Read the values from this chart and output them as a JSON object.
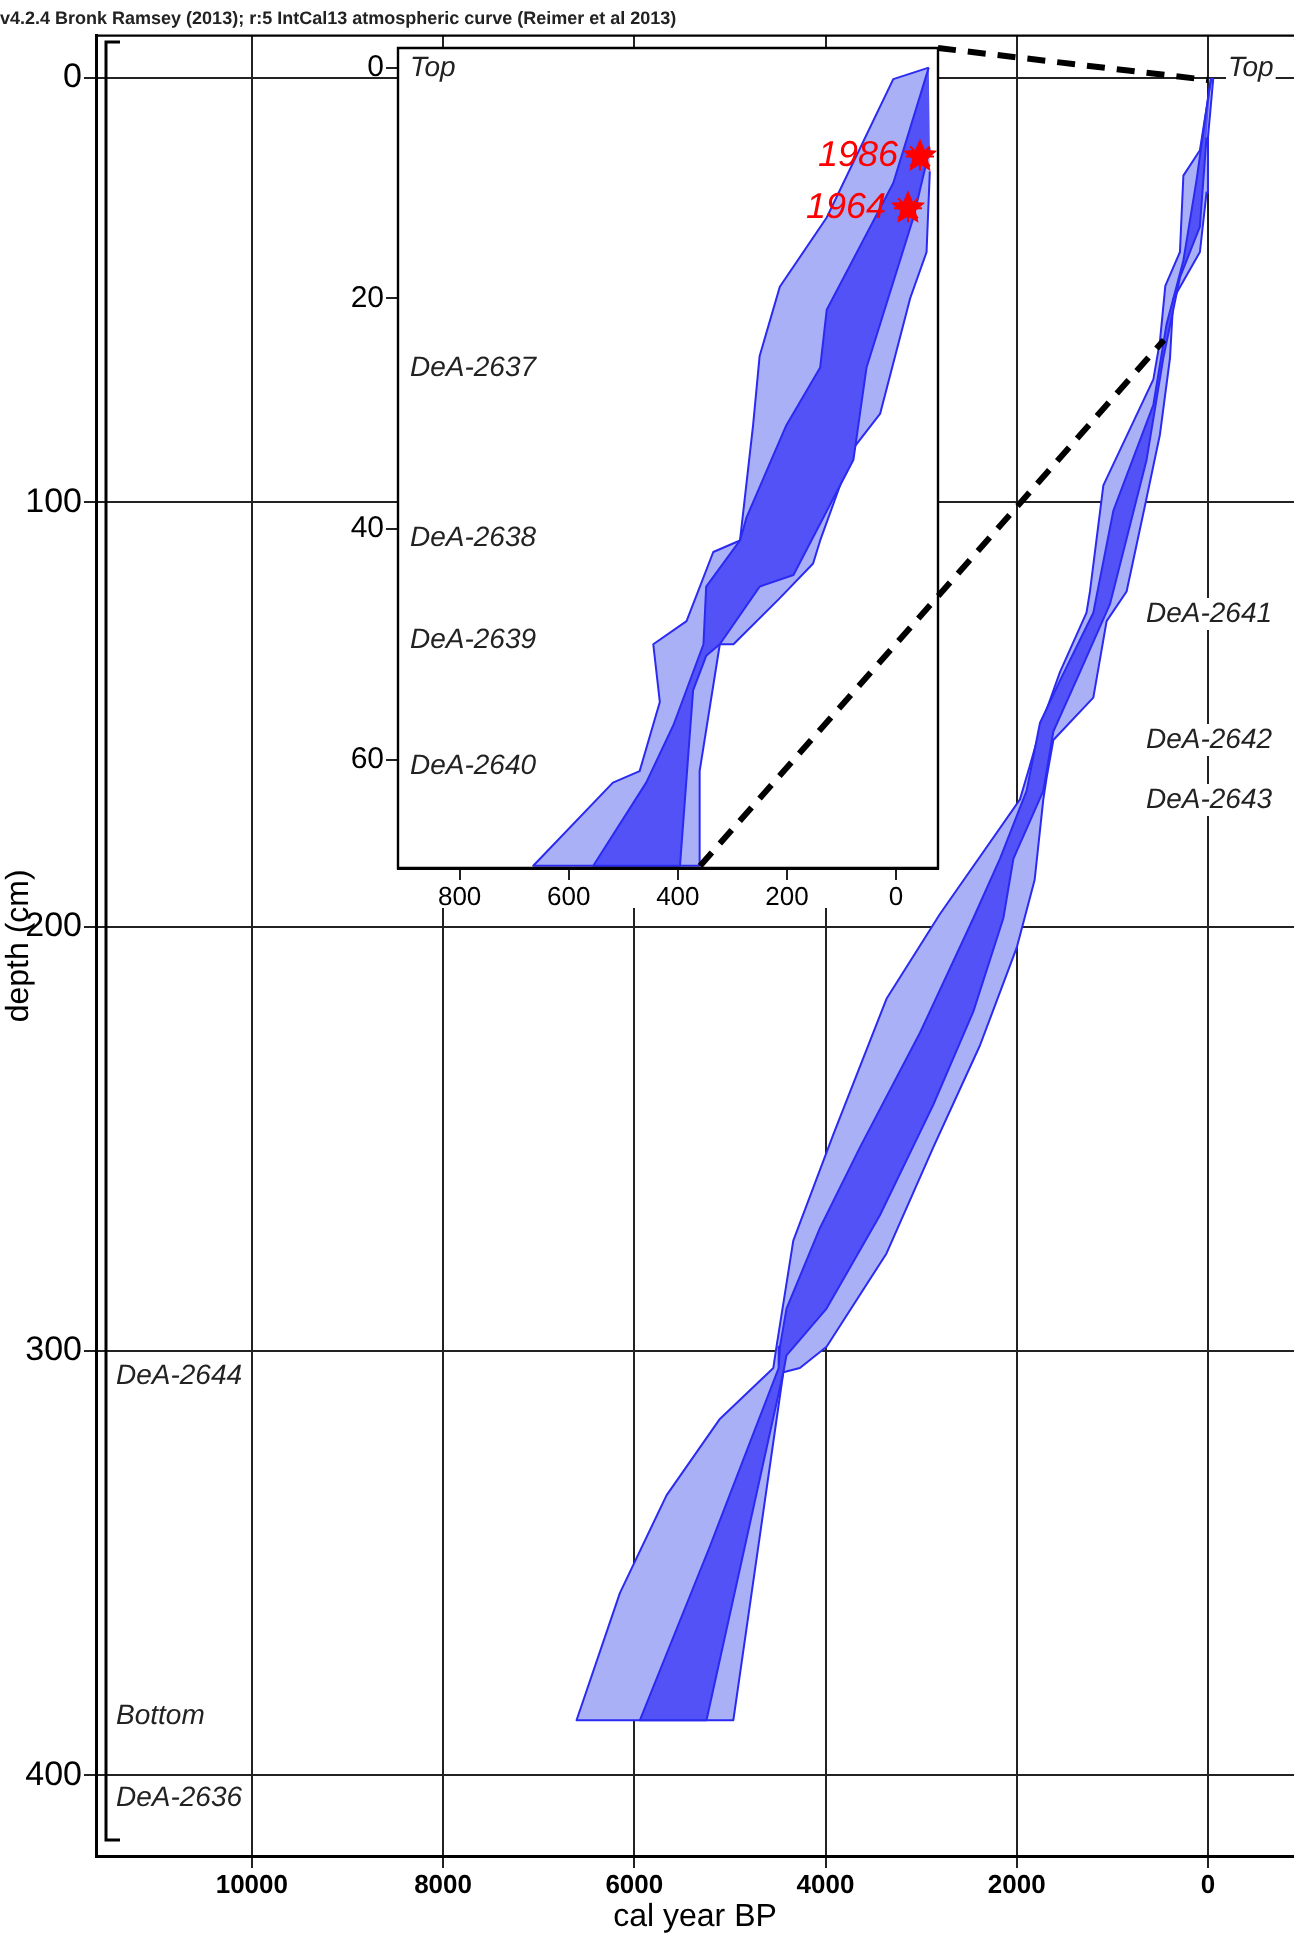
{
  "chart_data": [
    {
      "type": "area",
      "title": "v4.2.4 Bronk Ramsey (2013); r:5 IntCal13 atmospheric curve (Reimer et al 2013)",
      "xlabel": "cal year BP",
      "ylabel": "depth (cm)",
      "xlim": [
        11630,
        -900
      ],
      "ylim": [
        419,
        -10
      ],
      "xticks": [
        10000,
        8000,
        6000,
        4000,
        2000,
        0
      ],
      "yticks": [
        0,
        100,
        200,
        300,
        400
      ],
      "grid": true,
      "series": [
        {
          "color": "#aab0f6",
          "x": [
            -35,
            84,
            257,
            293,
            446,
            502,
            571,
            1094,
            1234,
            1270,
            1548,
            1722,
            1862,
            1966,
            2803,
            3362,
            3919,
            4337,
            4513,
            4546,
            5105,
            5663,
            6150,
            6604,
            4964,
            4441,
            4268,
            3989,
            3362,
            2873,
            2385,
            2001,
            1813,
            1722,
            1688,
            1617,
            1199,
            1060,
            851,
            642,
            502,
            397,
            362,
            84,
            15,
            0,
            -56
          ],
          "values": [
            0,
            17,
            23,
            41,
            49,
            62,
            71,
            96,
            121,
            126,
            140,
            151,
            162,
            170,
            197,
            217,
            249,
            274,
            299,
            304,
            316,
            334,
            357,
            387,
            387,
            305,
            304,
            299,
            277,
            252,
            228,
            205,
            189,
            170,
            165,
            156,
            146,
            128,
            121,
            99,
            84,
            66,
            52,
            41,
            27,
            14,
            0
          ]
        },
        {
          "color": "#5252f7",
          "x": [
            -30,
            119,
            257,
            433,
            571,
            990,
            1199,
            1548,
            1757,
            1897,
            2176,
            2454,
            3012,
            3640,
            4058,
            4408,
            4477,
            4490,
            5209,
            5941,
            5245,
            4441,
            4408,
            3989,
            3431,
            2873,
            2454,
            2140,
            2035,
            1722,
            1617,
            1339,
            1025,
            642,
            467,
            293,
            84,
            15
          ],
          "values": [
            0,
            24,
            43,
            58,
            77,
            102,
            126,
            142,
            152,
            168,
            184,
            198,
            225,
            252,
            271,
            290,
            299,
            304,
            346,
            387,
            387,
            305,
            301,
            290,
            268,
            242,
            220,
            198,
            184,
            168,
            154,
            140,
            124,
            90,
            66,
            47,
            35,
            14
          ]
        }
      ],
      "annotations": [
        "Top",
        "DeA-2641",
        "DeA-2642",
        "DeA-2643",
        "DeA-2644",
        "Bottom",
        "DeA-2636"
      ]
    },
    {
      "type": "area",
      "xlim": [
        913,
        -77
      ],
      "ylim": [
        69.4,
        -1.7
      ],
      "xticks": [
        800,
        600,
        400,
        200,
        0
      ],
      "yticks": [
        0,
        20,
        40,
        60
      ],
      "series": [
        {
          "color": "#aab0f6",
          "x": [
            -60,
            5,
            127,
            213,
            250,
            262,
            286,
            335,
            384,
            445,
            433,
            470,
            519,
            665,
            360,
            360,
            323,
            298,
            213,
            152,
            139,
            78,
            29,
            -26,
            -56,
            -62
          ],
          "values": [
            0,
            1,
            13,
            19,
            25,
            31,
            41,
            42,
            48,
            50,
            55,
            61,
            62,
            69.2,
            69.2,
            61,
            50,
            50,
            46,
            43,
            41,
            33,
            30,
            20,
            16,
            9
          ]
        },
        {
          "color": "#5252f7",
          "x": [
            -60,
            5,
            127,
            139,
            201,
            274,
            286,
            348,
            353,
            408,
            458,
            555,
            396,
            372,
            348,
            323,
            250,
            188,
            78,
            54,
            -32,
            -62
          ],
          "values": [
            0,
            10,
            21,
            26,
            31,
            39,
            41,
            45,
            50,
            57,
            62,
            69.2,
            69.2,
            54,
            51,
            50,
            45,
            44,
            34,
            26,
            13,
            7
          ]
        },
        {
          "type": "scatter",
          "color": "#ff0000",
          "marker": "star",
          "x": [
            -44,
            -22
          ],
          "values": [
            7.7,
            12.2
          ]
        }
      ],
      "annotations": [
        "Top",
        "DeA-2637",
        "DeA-2638",
        "DeA-2639",
        "DeA-2640",
        {
          "text": "1986",
          "x": -44,
          "y": 7.7
        },
        {
          "text": "1964",
          "x": -22,
          "y": 12.2
        }
      ]
    }
  ]
}
